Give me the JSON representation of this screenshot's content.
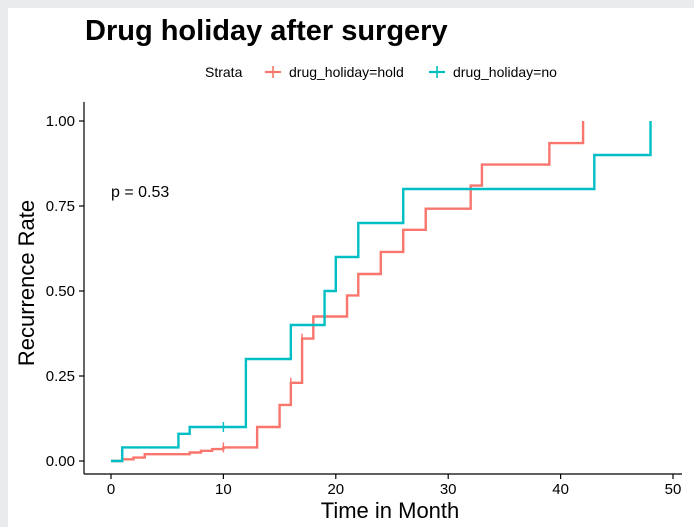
{
  "chart_data": {
    "type": "line",
    "step": true,
    "title": "Drug holiday after surgery",
    "xlabel": "Time in Month",
    "ylabel": "Recurrence Rate",
    "xlim": [
      0,
      50
    ],
    "ylim": [
      0,
      1
    ],
    "x_ticks": [
      0,
      10,
      20,
      30,
      40,
      50
    ],
    "y_ticks": [
      0,
      0.25,
      0.5,
      0.75,
      1.0
    ],
    "x_tick_labels": [
      "0",
      "10",
      "20",
      "30",
      "40",
      "50"
    ],
    "y_tick_labels": [
      "0.00",
      "0.25",
      "0.50",
      "0.75",
      "1.00"
    ],
    "grid": false,
    "legend": {
      "title": "Strata",
      "position": "top",
      "entries": [
        "drug_holiday=hold",
        "drug_holiday=no"
      ]
    },
    "annotation": "p = 0.53",
    "series": [
      {
        "name": "drug_holiday=hold",
        "color": "#F8766D",
        "x": [
          0,
          1,
          2,
          3,
          7,
          8,
          9,
          10,
          13,
          15,
          16,
          17,
          18,
          21,
          22,
          24,
          26,
          28,
          32,
          33,
          39,
          42
        ],
        "y": [
          0,
          0.005,
          0.01,
          0.02,
          0.025,
          0.03,
          0.035,
          0.04,
          0.1,
          0.165,
          0.23,
          0.36,
          0.425,
          0.487,
          0.55,
          0.615,
          0.68,
          0.742,
          0.81,
          0.872,
          0.935,
          1.0
        ],
        "censored": [
          [
            10,
            0.04
          ],
          [
            16,
            0.23
          ],
          [
            17,
            0.36
          ]
        ]
      },
      {
        "name": "drug_holiday=no",
        "color": "#00BFC4",
        "x": [
          0,
          1,
          6,
          7,
          12,
          16,
          19,
          20,
          22,
          26,
          43,
          48
        ],
        "y": [
          0,
          0.04,
          0.08,
          0.1,
          0.3,
          0.4,
          0.5,
          0.6,
          0.7,
          0.8,
          0.9,
          1.0
        ],
        "censored": [
          [
            10,
            0.1
          ]
        ]
      }
    ]
  }
}
